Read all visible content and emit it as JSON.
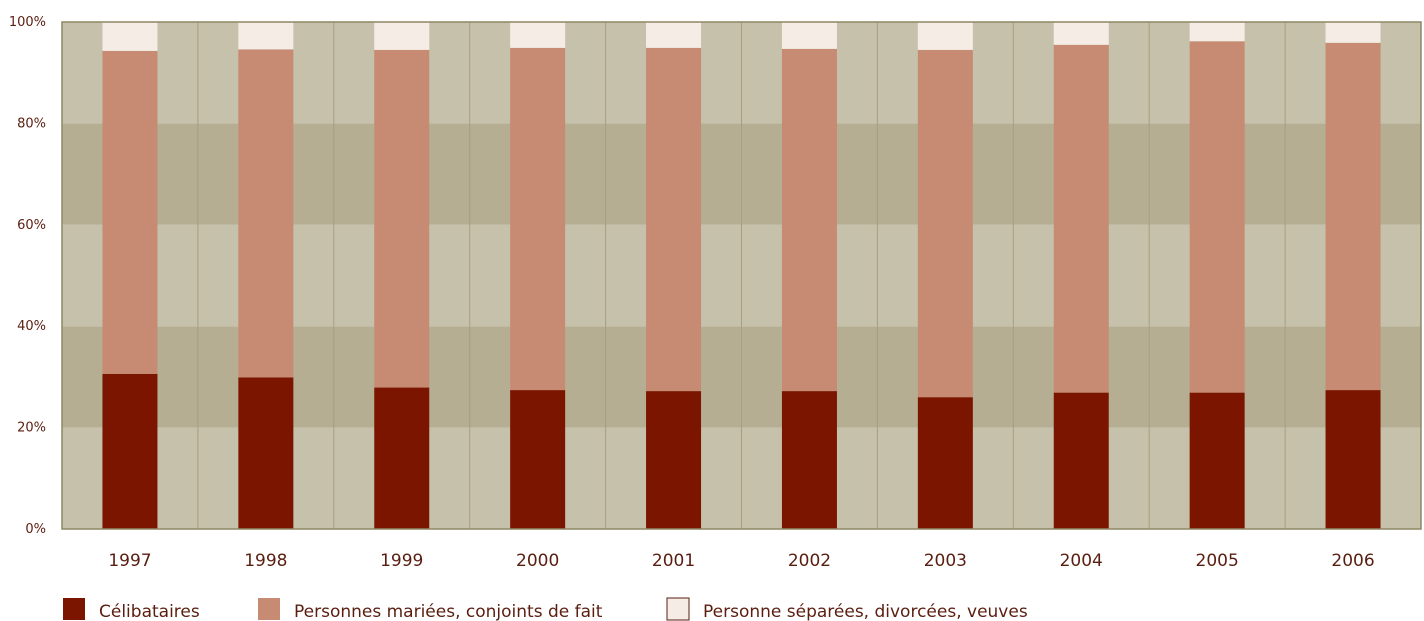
{
  "chart_data": {
    "type": "bar",
    "stacked": true,
    "categories": [
      "1997",
      "1998",
      "1999",
      "2000",
      "2001",
      "2002",
      "2003",
      "2004",
      "2005",
      "2006"
    ],
    "series": [
      {
        "name": "Célibataires",
        "color": "#7b1500",
        "values": [
          30.6,
          29.9,
          27.9,
          27.4,
          27.2,
          27.2,
          26.0,
          26.9,
          26.9,
          27.4
        ]
      },
      {
        "name": "Personnes mariées, conjoints de fait",
        "color": "#c68b72",
        "values": [
          63.7,
          64.7,
          66.6,
          67.5,
          67.7,
          67.5,
          68.5,
          68.6,
          69.3,
          68.5
        ]
      },
      {
        "name": "Personne séparées, divorcées, veuves",
        "color": "#f6ece6",
        "values": [
          5.7,
          5.4,
          5.5,
          5.1,
          5.1,
          5.3,
          5.5,
          4.5,
          3.8,
          4.1
        ]
      }
    ],
    "yticks": [
      "0%",
      "20%",
      "40%",
      "60%",
      "80%",
      "100%"
    ],
    "ylim": [
      0,
      100
    ],
    "grid": true,
    "legend_position": "bottom-left",
    "colors": {
      "band_light": "#c6c1ab",
      "band_dark": "#b5ae93",
      "divider": "#a79f80",
      "axis": "#8e8764"
    }
  }
}
